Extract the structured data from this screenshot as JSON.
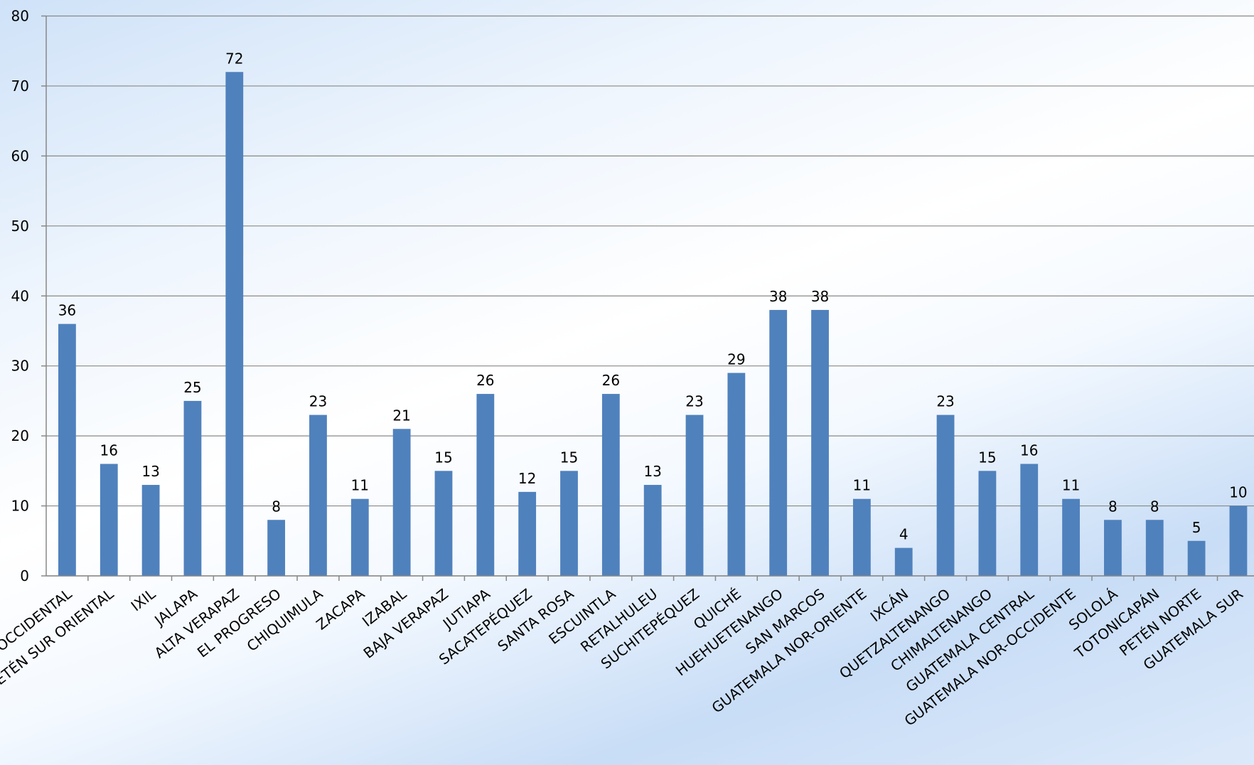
{
  "chart_data": {
    "type": "bar",
    "categories": [
      "PETÉN OCCIDENTAL",
      "PETÉN SUR ORIENTAL",
      "IXIL",
      "JALAPA",
      "ALTA VERAPAZ",
      "EL PROGRESO",
      "CHIQUIMULA",
      "ZACAPA",
      "IZABAL",
      "BAJA VERAPAZ",
      "JUTIAPA",
      "SACATEPÉQUEZ",
      "SANTA ROSA",
      "ESCUINTLA",
      "RETALHULEU",
      "SUCHITEPÉQUEZ",
      "QUICHÉ",
      "HUEHUETENANGO",
      "SAN MARCOS",
      "GUATEMALA NOR-ORIENTE",
      "IXCÁN",
      "QUETZALTENANGO",
      "CHIMALTENANGO",
      "GUATEMALA CENTRAL",
      "GUATEMALA NOR-OCCIDENTE",
      "SOLOLÁ",
      "TOTONICAPÁN",
      "PETÉN NORTE",
      "GUATEMALA SUR"
    ],
    "values": [
      36,
      16,
      13,
      25,
      72,
      8,
      23,
      11,
      21,
      15,
      26,
      12,
      15,
      26,
      13,
      23,
      29,
      38,
      38,
      11,
      4,
      23,
      15,
      16,
      11,
      8,
      8,
      5,
      10
    ],
    "color": "#4f81bd",
    "ylim": [
      0,
      80
    ],
    "yticks": [
      0,
      10,
      20,
      30,
      40,
      50,
      60,
      70,
      80
    ],
    "grid": true
  }
}
